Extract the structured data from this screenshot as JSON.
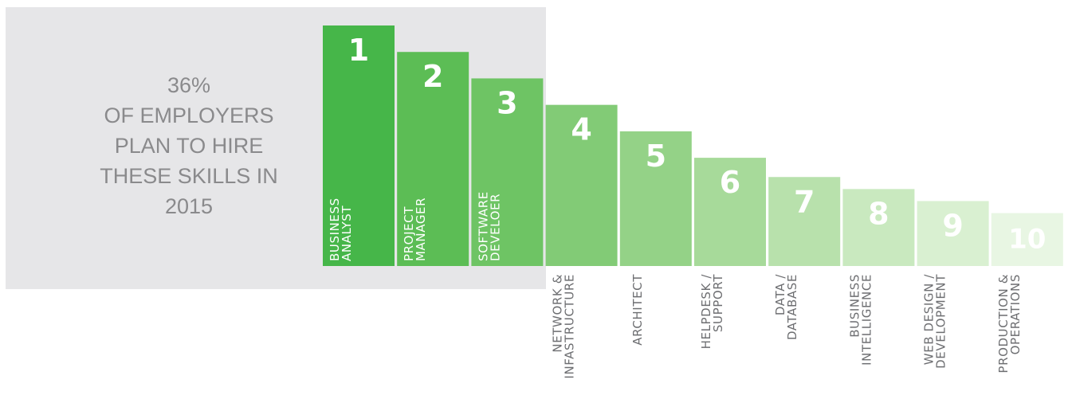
{
  "intro": {
    "lines": [
      "36%",
      "OF EMPLOYERS",
      "PLAN TO HIRE",
      "THESE SKILLS IN",
      "2015"
    ]
  },
  "colors": {
    "panel": "#e6e6e8",
    "intro_text": "#8a8a8c",
    "category_text_outside": "#6d6e71",
    "category_text_inside": "#ffffff",
    "bars": [
      "#46b649",
      "#5cbd55",
      "#6ec464",
      "#82cb76",
      "#94d287",
      "#a7da9a",
      "#b8e1ac",
      "#c9e9bf",
      "#d9f0d1",
      "#e8f6e3"
    ]
  },
  "chart_data": {
    "type": "bar",
    "title": "",
    "xlabel": "",
    "ylabel": "",
    "ylim": [
      0,
      10
    ],
    "categories": [
      [
        "BUSINESS",
        "ANALYST"
      ],
      [
        "PROJECT",
        "MANAGER"
      ],
      [
        "SOFTWARE",
        "DEVELOER"
      ],
      [
        "NETWORK &",
        "INFASTRUCTURE"
      ],
      [
        "ARCHITECT"
      ],
      [
        "HELPDESK /",
        "SUPPORT"
      ],
      [
        "DATA /",
        "DATABASE"
      ],
      [
        "BUSINESS",
        "INTELLIGENCE"
      ],
      [
        "WEB DESIGN /",
        "DEVELOPMENT"
      ],
      [
        "PRODUCTION &",
        "OPERATIONS"
      ]
    ],
    "ranks": [
      "1",
      "2",
      "3",
      "4",
      "5",
      "6",
      "7",
      "8",
      "9",
      "10"
    ],
    "values": [
      10,
      8.9,
      7.8,
      6.7,
      5.6,
      4.5,
      3.7,
      3.2,
      2.7,
      2.2
    ]
  }
}
